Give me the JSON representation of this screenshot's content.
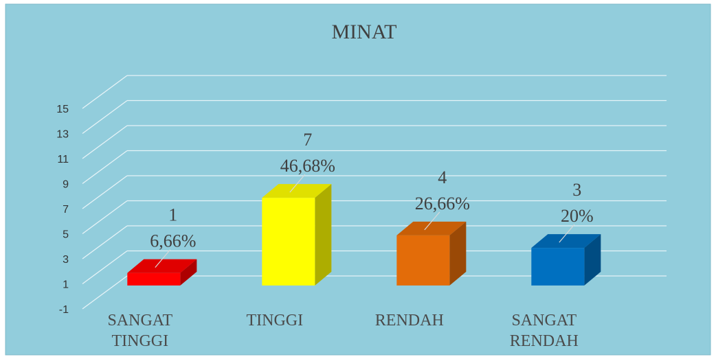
{
  "chart_data": {
    "type": "bar3d",
    "title": "MINAT",
    "categories": [
      "SANGAT TINGGI",
      "TINGGI",
      "RENDAH",
      "SANGAT RENDAH"
    ],
    "values": [
      1,
      7,
      4,
      3
    ],
    "percent_labels": [
      "6,66%",
      "46,68%",
      "26,66%",
      "20%"
    ],
    "colors": [
      "#ff0000",
      "#ffff00",
      "#e36c09",
      "#0070c0"
    ],
    "ylim": [
      -1,
      15
    ],
    "yticks": [
      -1,
      1,
      3,
      5,
      7,
      9,
      11,
      13,
      15
    ],
    "grid": true
  }
}
